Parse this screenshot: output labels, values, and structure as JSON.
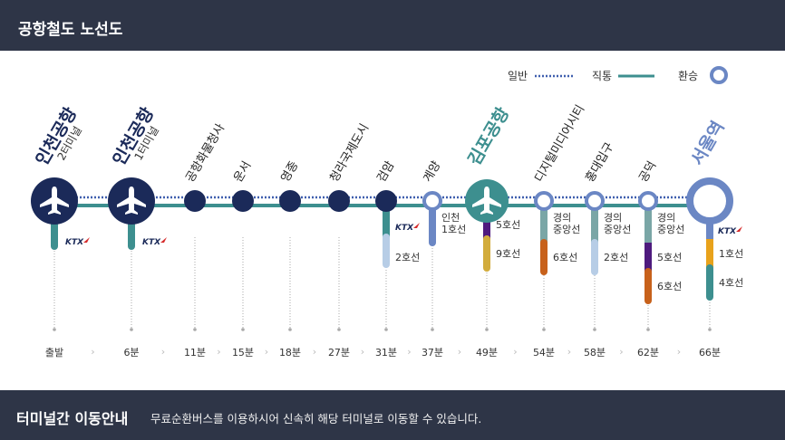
{
  "header": {
    "title": "공항철도 노선도"
  },
  "legend": {
    "normal": "일반",
    "express": "직통",
    "transfer": "환승"
  },
  "colors": {
    "line": "#3d8f8f",
    "navy": "#1b2a59",
    "transfer": "#6b87c4",
    "dotted": "#3f5fae"
  },
  "stations": [
    {
      "name": "인천공항",
      "sub": "2터미널",
      "time": "출발",
      "type": "airport",
      "transfers": [
        {
          "label": "KTX",
          "kind": "ktx"
        }
      ]
    },
    {
      "name": "인천공항",
      "sub": "1터미널",
      "time": "6분",
      "type": "airport",
      "transfers": [
        {
          "label": "KTX",
          "kind": "ktx"
        }
      ]
    },
    {
      "name": "공항화물청사",
      "time": "11분",
      "type": "stop",
      "transfers": []
    },
    {
      "name": "운서",
      "time": "15분",
      "type": "stop",
      "transfers": []
    },
    {
      "name": "영종",
      "time": "18분",
      "type": "stop",
      "transfers": []
    },
    {
      "name": "청라국제도시",
      "time": "27분",
      "type": "stop",
      "transfers": []
    },
    {
      "name": "검암",
      "time": "31분",
      "type": "stop",
      "transfers": [
        {
          "label": "KTX",
          "kind": "ktx"
        },
        {
          "label": "2호선"
        }
      ]
    },
    {
      "name": "계양",
      "time": "37분",
      "type": "transfer",
      "transfers": [
        {
          "label": "인천\n1호선"
        }
      ]
    },
    {
      "name": "김포공항",
      "time": "49분",
      "type": "gimpo",
      "transfers": [
        {
          "label": "5호선"
        },
        {
          "label": "9호선"
        }
      ]
    },
    {
      "name": "디지털미디어시티",
      "time": "54분",
      "type": "transfer",
      "transfers": [
        {
          "label": "경의\n중앙선"
        },
        {
          "label": "6호선"
        }
      ]
    },
    {
      "name": "홍대입구",
      "time": "58분",
      "type": "transfer",
      "transfers": [
        {
          "label": "경의\n중앙선"
        },
        {
          "label": "2호선"
        }
      ]
    },
    {
      "name": "공덕",
      "time": "62분",
      "type": "transfer",
      "transfers": [
        {
          "label": "경의\n중앙선"
        },
        {
          "label": "5호선"
        },
        {
          "label": "6호선"
        }
      ]
    },
    {
      "name": "서울역",
      "time": "66분",
      "type": "seoul",
      "transfers": [
        {
          "label": "KTX",
          "kind": "ktx"
        },
        {
          "label": "1호선"
        },
        {
          "label": "4호선"
        }
      ]
    }
  ],
  "footer": {
    "title": "터미널간 이동안내",
    "description": "무료순환버스를 이용하시어 신속히 해당 터미널로 이동할 수 있습니다."
  }
}
